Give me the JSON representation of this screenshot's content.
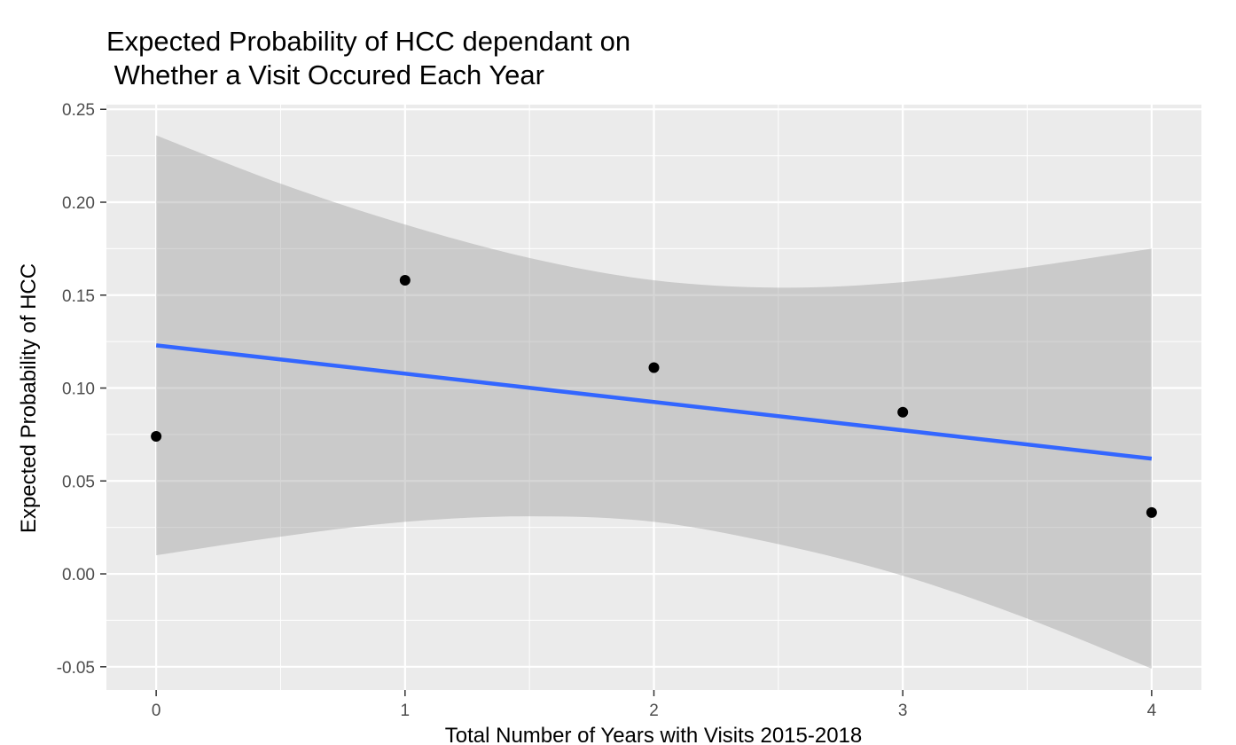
{
  "chart_data": {
    "type": "scatter",
    "title_lines": [
      "Expected Probability of HCC dependant on",
      " Whether a Visit Occured Each Year"
    ],
    "xlabel": "Total Number of Years with Visits 2015-2018",
    "ylabel": "Expected Probability of HCC",
    "xlim": [
      -0.2,
      4.2
    ],
    "ylim": [
      -0.0625,
      0.2525
    ],
    "x_ticks": [
      0,
      1,
      2,
      3,
      4
    ],
    "x_tick_labels": [
      "0",
      "1",
      "2",
      "3",
      "4"
    ],
    "y_ticks": [
      -0.05,
      0.0,
      0.05,
      0.1,
      0.15,
      0.2,
      0.25
    ],
    "y_tick_labels": [
      "-0.05",
      "0.00",
      "0.05",
      "0.10",
      "0.15",
      "0.20",
      "0.25"
    ],
    "grid": true,
    "points": [
      {
        "x": 0,
        "y": 0.074
      },
      {
        "x": 1,
        "y": 0.158
      },
      {
        "x": 2,
        "y": 0.111
      },
      {
        "x": 3,
        "y": 0.087
      },
      {
        "x": 4,
        "y": 0.033
      }
    ],
    "fit_line": {
      "x": [
        0,
        4
      ],
      "y": [
        0.123,
        0.062
      ]
    },
    "confidence_band": {
      "x": [
        0,
        0.5,
        1,
        1.5,
        2,
        2.5,
        3,
        3.5,
        4
      ],
      "upper": [
        0.236,
        0.21,
        0.188,
        0.17,
        0.158,
        0.154,
        0.157,
        0.165,
        0.175
      ],
      "lower": [
        0.01,
        0.02,
        0.028,
        0.031,
        0.028,
        0.016,
        -0.001,
        -0.024,
        -0.051
      ]
    },
    "colors": {
      "panel": "#ebebeb",
      "grid": "#ffffff",
      "band": "#999999",
      "line": "#3366ff",
      "points": "#000000"
    }
  }
}
